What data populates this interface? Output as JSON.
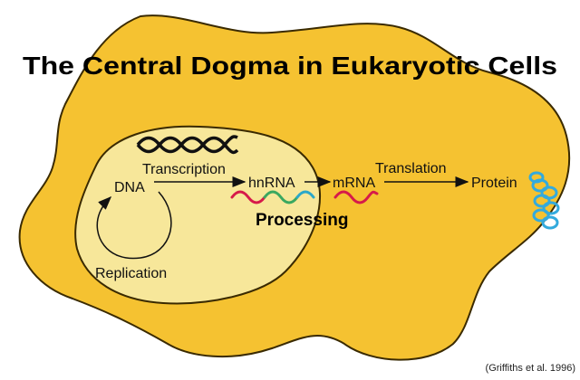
{
  "title": "The Central Dogma in Eukaryotic Cells",
  "labels": {
    "dna": "DNA",
    "transcription": "Transcription",
    "hnrna": "hnRNA",
    "mrna": "mRNA",
    "translation": "Translation",
    "protein": "Protein",
    "processing": "Processing",
    "replication": "Replication"
  },
  "citation": "(Griffiths et al. 1996)",
  "colors": {
    "cell_fill": "#F5C231",
    "nucleus_fill": "#F7E79A",
    "outline": "#3a2a00",
    "rna_red": "#d61a4a",
    "rna_green": "#3aa860",
    "rna_teal": "#2aa7c9",
    "protein_blue": "#33aadd"
  }
}
